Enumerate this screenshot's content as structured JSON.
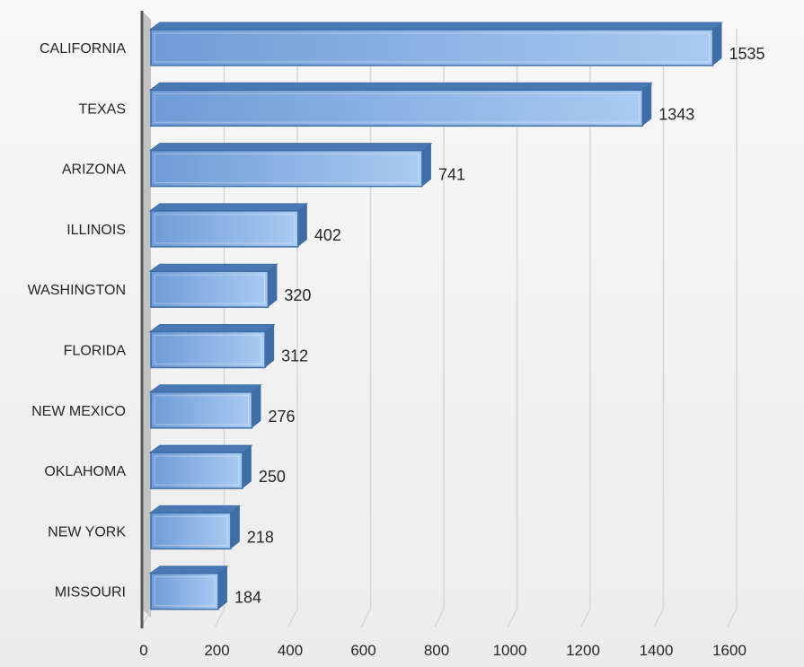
{
  "chart_data": {
    "type": "bar",
    "orientation": "horizontal",
    "style": "3d",
    "categories": [
      "CALIFORNIA",
      "TEXAS",
      "ARIZONA",
      "ILLINOIS",
      "WASHINGTON",
      "FLORIDA",
      "NEW MEXICO",
      "OKLAHOMA",
      "NEW YORK",
      "MISSOURI"
    ],
    "values": [
      1535,
      1343,
      741,
      402,
      320,
      312,
      276,
      250,
      218,
      184
    ],
    "data_labels": [
      "1535",
      "1343",
      "741",
      "402",
      "320",
      "312",
      "276",
      "250",
      "218",
      "184"
    ],
    "x_ticks": [
      "0",
      "200",
      "400",
      "600",
      "800",
      "1000",
      "1200",
      "1400",
      "1600"
    ],
    "xlim": [
      0,
      1600
    ],
    "title": "",
    "xlabel": "",
    "ylabel": "",
    "grid": true,
    "legend": "none",
    "colors": {
      "bar_front": "#6f9bd6",
      "bar_light": "#a9cbf2",
      "bar_edge": "#3f6ea7",
      "bar_top": "#4a78b3",
      "wall": "#c2c2c2",
      "axis": "#595959",
      "grid": "#d6d6d6"
    }
  }
}
